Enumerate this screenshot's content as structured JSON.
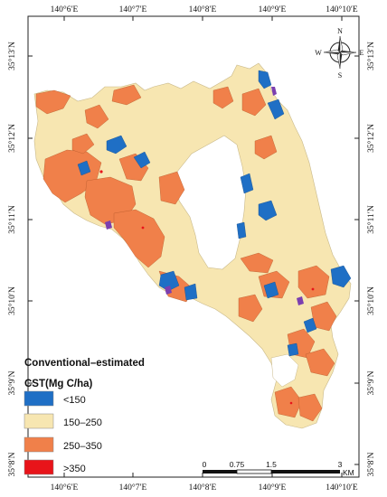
{
  "map": {
    "top_lon_labels": [
      "140°6′E",
      "140°7′E",
      "140°8′E",
      "140°9′E",
      "140°10′E"
    ],
    "bottom_lon_labels": [
      "140°6′E",
      "140°7′E",
      "140°8′E",
      "140°9′E",
      "140°10′E"
    ],
    "left_lat_labels": [
      "35°13′N",
      "35°12′N",
      "35°11′N",
      "35°10′N",
      "35°9′N",
      "35°8′N"
    ],
    "right_lat_labels": [
      "35°13′N",
      "35°12′N",
      "35°11′N",
      "35°10′N",
      "35°9′N",
      "35°8′N"
    ],
    "compass": {
      "n": "N",
      "s": "S",
      "e": "E",
      "w": "W"
    },
    "legend": {
      "title_line1": "Conventional–estimated",
      "title_line2": "CST(Mg C/ha)",
      "items": [
        {
          "label": "<150",
          "color": "#1f6fc5"
        },
        {
          "label": "150–250",
          "color": "#f7e6b1"
        },
        {
          "label": "250–350",
          "color": "#f0804a"
        },
        {
          "label": ">350",
          "color": "#e8141a"
        }
      ]
    },
    "scalebar": {
      "ticks": [
        "0",
        "0.75",
        "1.5",
        "3"
      ],
      "unit": "KM"
    },
    "colors": {
      "low": "#1f6fc5",
      "mid": "#f7e6b1",
      "high": "#f0804a",
      "very_high": "#e8141a",
      "boundary_accent": "#7b3fb0"
    }
  }
}
